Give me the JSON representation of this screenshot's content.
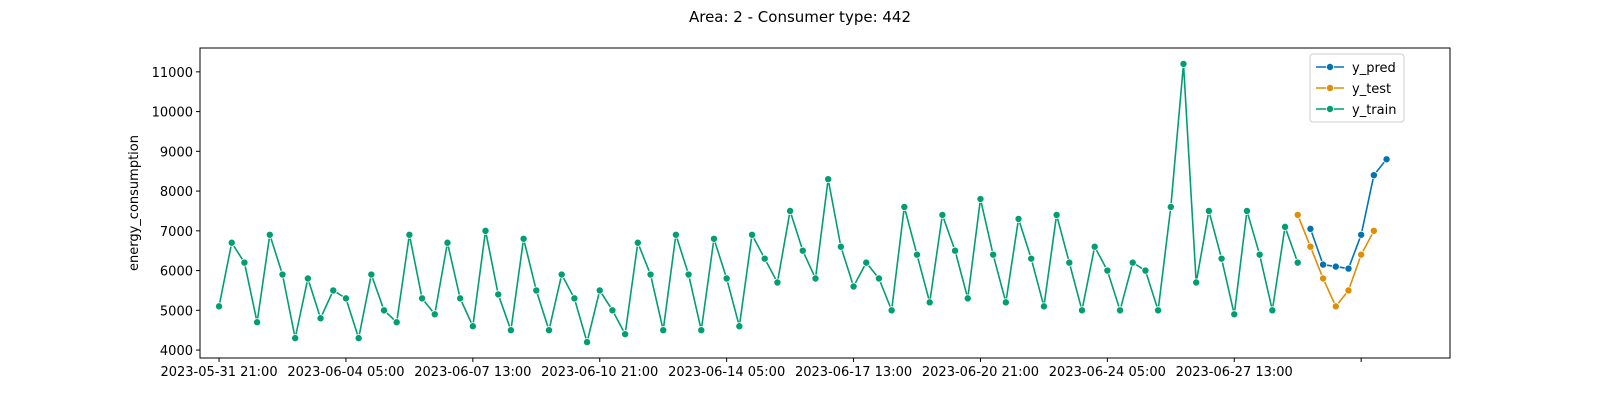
{
  "chart_data": {
    "type": "line",
    "title": "Area: 2 - Consumer type: 442",
    "xlabel": "",
    "ylabel": "energy_consumption",
    "ylim": [
      3800,
      11600
    ],
    "yticks": [
      4000,
      5000,
      6000,
      7000,
      8000,
      9000,
      10000,
      11000
    ],
    "x_start": "2023-05-31 21:00",
    "x_step_hours": 8,
    "xlim": [
      "2023-05-31 09:00",
      "2023-07-03 05:00"
    ],
    "xticks": [
      "2023-05-31 21:00",
      "2023-06-04 05:00",
      "2023-06-07 13:00",
      "2023-06-10 21:00",
      "2023-06-14 05:00",
      "2023-06-17 13:00",
      "2023-06-20 21:00",
      "2023-06-24 05:00",
      "2023-06-27 13:00",
      "2023-06-30 21:00"
    ],
    "xtick_labels": [
      "2023-05-31 21:00",
      "2023-06-04 05:00",
      "2023-06-07 13:00",
      "2023-06-10 21:00",
      "2023-06-14 05:00",
      "2023-06-17 13:00",
      "2023-06-20 21:00",
      "2023-06-24 05:00",
      "2023-06-27 13:00",
      ""
    ],
    "grid": false,
    "legend_position": "top-right",
    "series": [
      {
        "name": "y_pred",
        "color": "#0173b2",
        "start": "2023-06-29 13:00",
        "step_hours": 8,
        "values": [
          7050,
          6150,
          6100,
          6050,
          6900,
          8400,
          8800
        ]
      },
      {
        "name": "y_test",
        "color": "#de8f05",
        "start": "2023-06-29 05:00",
        "step_hours": 8,
        "values": [
          7400,
          6600,
          5800,
          5100,
          5500,
          6400,
          7000
        ]
      },
      {
        "name": "y_train",
        "color": "#029e73",
        "start": "2023-05-31 21:00",
        "step_hours": 8,
        "values": [
          5100,
          6700,
          6200,
          4700,
          6900,
          5900,
          4300,
          5800,
          4800,
          5500,
          5300,
          4300,
          5900,
          5000,
          4700,
          6900,
          5300,
          4900,
          6700,
          5300,
          4600,
          7000,
          5400,
          4500,
          6800,
          5500,
          4500,
          5900,
          5300,
          4200,
          5500,
          5000,
          4400,
          6700,
          5900,
          4500,
          6900,
          5900,
          4500,
          6800,
          5800,
          4600,
          6900,
          6300,
          5700,
          7500,
          6500,
          5800,
          8300,
          6600,
          5600,
          6200,
          5800,
          5000,
          7600,
          6400,
          5200,
          7400,
          6500,
          5300,
          7800,
          6400,
          5200,
          7300,
          6300,
          5100,
          7400,
          6200,
          5000,
          6600,
          6000,
          5000,
          6200,
          6000,
          5000,
          7600,
          11200,
          5700,
          7500,
          6300,
          4900,
          7500,
          6400,
          5000,
          7100,
          6200
        ]
      }
    ]
  }
}
